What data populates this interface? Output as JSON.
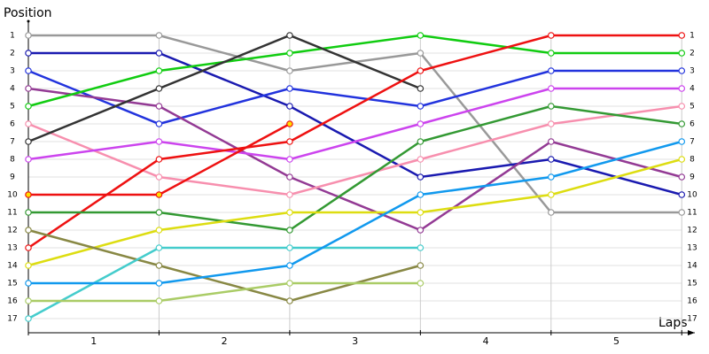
{
  "chart_data": {
    "type": "line",
    "y_label": "Position",
    "x_label": "Laps",
    "x": [
      0,
      1,
      2,
      3,
      4,
      5
    ],
    "xlim": [
      0,
      5.1
    ],
    "xticks": [
      {
        "value": 0.5,
        "label": "1"
      },
      {
        "value": 1.5,
        "label": "2"
      },
      {
        "value": 2.5,
        "label": "3"
      },
      {
        "value": 3.5,
        "label": "4"
      },
      {
        "value": 4.5,
        "label": "5"
      }
    ],
    "ylim": [
      18,
      0
    ],
    "y_inverted": true,
    "yticks": [
      1,
      2,
      3,
      4,
      5,
      6,
      7,
      8,
      9,
      10,
      11,
      12,
      13,
      14,
      15,
      16,
      17
    ],
    "grid": true,
    "series": [
      {
        "color": "#999999",
        "values": [
          1,
          1,
          3,
          2,
          11,
          11
        ]
      },
      {
        "color": "#1a1ab0",
        "values": [
          2,
          2,
          5,
          9,
          8,
          10
        ]
      },
      {
        "color": "#2233dd",
        "values": [
          3,
          6,
          4,
          5,
          3,
          3
        ]
      },
      {
        "color": "#933a94",
        "values": [
          4,
          5,
          9,
          12,
          7,
          9
        ]
      },
      {
        "color": "#11cc11",
        "values": [
          5,
          3,
          2,
          1,
          2,
          2
        ]
      },
      {
        "color": "#f78fae",
        "values": [
          6,
          9,
          10,
          8,
          6,
          5
        ]
      },
      {
        "color": "#333333",
        "values": [
          7,
          4,
          1,
          4,
          null,
          null
        ]
      },
      {
        "color": "#cc44ee",
        "values": [
          8,
          7,
          8,
          6,
          4,
          4
        ]
      },
      {
        "color": "#ee1111",
        "values": [
          13,
          8,
          7,
          3,
          1,
          1
        ]
      },
      {
        "color": "#ee1111",
        "marker_fill": "#ffdd00",
        "values": [
          10,
          10,
          6,
          null,
          null,
          null
        ]
      },
      {
        "color": "#339933",
        "values": [
          11,
          11,
          12,
          7,
          5,
          6
        ]
      },
      {
        "color": "#dddd11",
        "values": [
          14,
          12,
          11,
          11,
          10,
          8
        ]
      },
      {
        "color": "#888844",
        "values": [
          12,
          14,
          16,
          14,
          null,
          null
        ]
      },
      {
        "color": "#44cccc",
        "values": [
          17,
          13,
          13,
          13,
          null,
          null
        ]
      },
      {
        "color": "#1199ee",
        "values": [
          15,
          15,
          14,
          10,
          9,
          7
        ]
      },
      {
        "color": "#aacc66",
        "values": [
          16,
          16,
          15,
          15,
          null,
          null
        ]
      }
    ]
  }
}
